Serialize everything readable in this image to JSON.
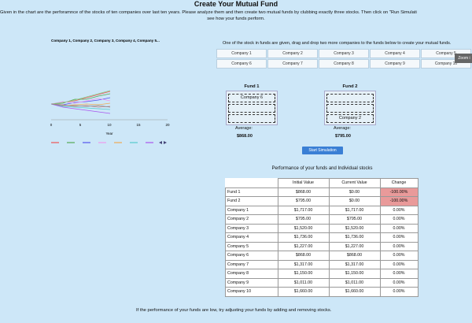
{
  "header": {
    "title": "Create Your Mutual Fund",
    "intro": [
      "Given in the chart are the perforamnce of the stocks of ten companies over last ten years. Please analyze them and then create two mutual funds by clubbing exactly three stocks. Then click on \"Run Simulati",
      "see how your funds perform."
    ]
  },
  "chart": {
    "title": "Company 1, Company 2, Company 3, Company 4, Company 5...",
    "xticks": [
      0,
      5,
      10,
      15,
      20
    ],
    "xlabel": "Year"
  },
  "instructions": "One of the stock in funds are given, drag and drop two more companies to the funds below to create your mutual funds.",
  "companies": [
    "Company 1",
    "Company 2",
    "Company 3",
    "Company 4",
    "Company 5",
    "Company 6",
    "Company 7",
    "Company 8",
    "Company 9",
    "Company 10"
  ],
  "zoom_button": "Zoom i",
  "funds": [
    {
      "label": "Fund 1",
      "stock": "Company 6",
      "average_label": "Average:",
      "average": "$868.00"
    },
    {
      "label": "Fund 2",
      "stock": "Company 2",
      "average_label": "Average:",
      "average": "$795.00"
    }
  ],
  "button": "Start Simulation",
  "table": {
    "title": "Performance of your funds and Individual stocks",
    "columns": [
      "Initial Value",
      "Current Value",
      "Change"
    ],
    "rows": [
      [
        "Fund 1",
        "$868.00",
        "$0.00",
        "-100.00%"
      ],
      [
        "Fund 2",
        "$795.00",
        "$0.00",
        "-100.00%"
      ],
      [
        "Company 1",
        "$1,717.00",
        "$1,717.00",
        "0.00%"
      ],
      [
        "Company 2",
        "$795.00",
        "$795.00",
        "0.00%"
      ],
      [
        "Company 3",
        "$1,520.00",
        "$1,520.00",
        "0.00%"
      ],
      [
        "Company 4",
        "$1,736.00",
        "$1,736.00",
        "0.00%"
      ],
      [
        "Company 5",
        "$1,227.00",
        "$1,227.00",
        "0.00%"
      ],
      [
        "Company 6",
        "$868.00",
        "$868.00",
        "0.00%"
      ],
      [
        "Company 7",
        "$1,317.00",
        "$1,317.00",
        "0.00%"
      ],
      [
        "Company 8",
        "$1,150.00",
        "$1,150.00",
        "0.00%"
      ],
      [
        "Company 9",
        "$1,011.00",
        "$1,011.00",
        "0.00%"
      ],
      [
        "Company 10",
        "$1,660.00",
        "$1,660.00",
        "0.00%"
      ]
    ]
  },
  "footer": "If the performance of your funds are low, try adjusting your funds by adding and removing stocks."
}
